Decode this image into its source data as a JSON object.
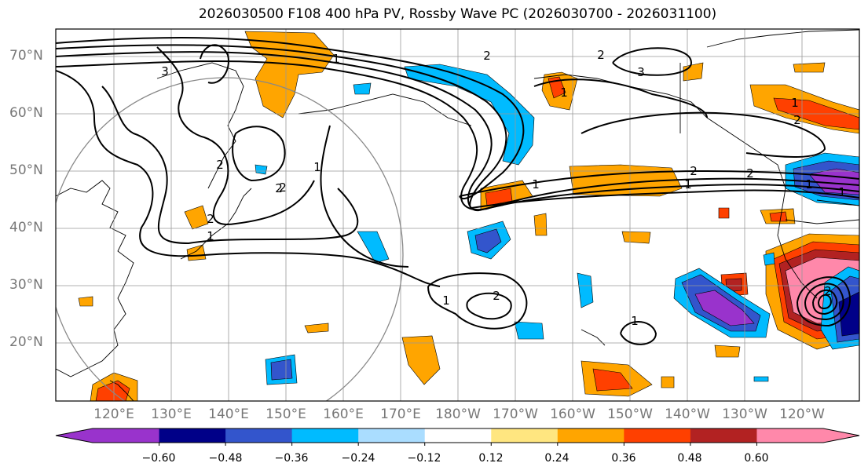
{
  "title": "2026030500 F108 400 hPa PV, Rossby Wave PC (2026030700 - 2026031100)",
  "lat_labels": [
    "70°N",
    "60°N",
    "50°N",
    "40°N",
    "30°N",
    "20°N"
  ],
  "lon_labels": [
    "120°E",
    "130°E",
    "140°E",
    "150°E",
    "160°E",
    "170°E",
    "180°W",
    "170°W",
    "160°W",
    "150°W",
    "140°W",
    "130°W",
    "120°W"
  ],
  "colorbar": {
    "colors": [
      "#9933cc",
      "#000088",
      "#3355cc",
      "#00bbff",
      "#aaddff",
      "#ffffff",
      "#ffe680",
      "#ffa500",
      "#ff4000",
      "#b22222",
      "#ff88aa"
    ],
    "tick_labels": [
      "−0.60",
      "−0.48",
      "−0.36",
      "−0.24",
      "−0.12",
      "0.12",
      "0.24",
      "0.36",
      "0.48",
      "0.60"
    ]
  },
  "contour_labels": [
    "1",
    "2",
    "3",
    "1",
    "2",
    "1",
    "2",
    "2",
    "1",
    "2",
    "1",
    "2",
    "3",
    "1",
    "2",
    "1",
    "2",
    "1",
    "1",
    "2",
    "1",
    "2",
    "2",
    "1"
  ]
}
